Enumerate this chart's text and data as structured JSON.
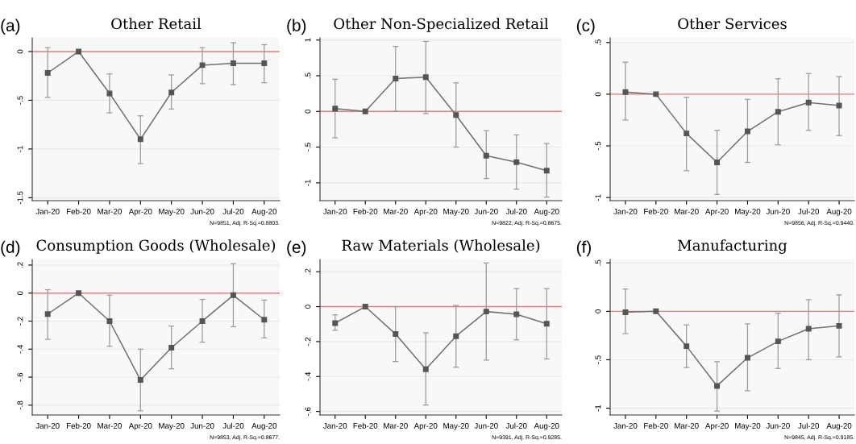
{
  "chart_data": [
    {
      "type": "line",
      "title": "Other Retail",
      "annotations": [
        "(a)",
        "N=9851, Adj. R-Sq.=0.8803."
      ],
      "categories": [
        "Jan-20",
        "Feb-20",
        "Mar-20",
        "Apr-20",
        "May-20",
        "Jun-20",
        "Jul-20",
        "Aug-20"
      ],
      "series": [
        {
          "color": "#555555",
          "values": [
            -0.22,
            0,
            -0.43,
            -0.9,
            -0.42,
            -0.14,
            -0.12,
            -0.12
          ],
          "errors": [
            [
              -0.47,
              0.04
            ],
            null,
            [
              -0.63,
              -0.23
            ],
            [
              -1.15,
              -0.66
            ],
            [
              -0.59,
              -0.24
            ],
            [
              -0.33,
              0.04
            ],
            [
              -0.34,
              0.09
            ],
            [
              -0.32,
              0.07
            ]
          ]
        }
      ],
      "ylim": [
        -1.53,
        0.14
      ],
      "yticks": [
        {
          "value": -1.5,
          "label": "-1.5"
        },
        {
          "value": -1,
          "label": "-1"
        },
        {
          "value": -0.5,
          "label": "-.5"
        },
        0
      ],
      "ref_lines": [
        {
          "axis": "y",
          "value": 0,
          "color": "#e08080"
        }
      ],
      "grid": "y",
      "marker": "square",
      "line_style": "solid"
    },
    {
      "type": "line",
      "title": "Other Non-Specialized Retail",
      "annotations": [
        "(b)",
        "N=9822, Adj. R-Sq.=0.8675."
      ],
      "categories": [
        "Jan-20",
        "Feb-20",
        "Mar-20",
        "Apr-20",
        "May-20",
        "Jun-20",
        "Jul-20",
        "Aug-20"
      ],
      "series": [
        {
          "color": "#555555",
          "values": [
            0.04,
            0,
            0.46,
            0.48,
            -0.05,
            -0.62,
            -0.71,
            -0.83
          ],
          "errors": [
            [
              -0.37,
              0.45
            ],
            null,
            [
              0,
              0.91
            ],
            [
              -0.03,
              0.98
            ],
            [
              -0.5,
              0.4
            ],
            [
              -0.94,
              -0.27
            ],
            [
              -1.09,
              -0.33
            ],
            [
              -1.2,
              -0.45
            ]
          ]
        }
      ],
      "ylim": [
        -1.25,
        1.03
      ],
      "yticks": [
        {
          "value": -1,
          "label": "-1"
        },
        {
          "value": -0.5,
          "label": "-.5"
        },
        0,
        {
          "value": 0.5,
          "label": ".5"
        },
        1
      ],
      "ref_lines": [
        {
          "axis": "y",
          "value": 0,
          "color": "#e08080"
        }
      ],
      "grid": "y",
      "marker": "square",
      "line_style": "solid"
    },
    {
      "type": "line",
      "title": "Other Services",
      "annotations": [
        "(c)",
        "N=9856, Adj. R-Sq.=0.9440."
      ],
      "categories": [
        "Jan-20",
        "Feb-20",
        "Mar-20",
        "Apr-20",
        "May-20",
        "Jun-20",
        "Jul-20",
        "Aug-20"
      ],
      "series": [
        {
          "color": "#555555",
          "values": [
            0.02,
            0,
            -0.38,
            -0.66,
            -0.36,
            -0.17,
            -0.08,
            -0.11
          ],
          "errors": [
            [
              -0.25,
              0.31
            ],
            null,
            [
              -0.74,
              -0.03
            ],
            [
              -0.97,
              -0.35
            ],
            [
              -0.66,
              -0.05
            ],
            [
              -0.49,
              0.15
            ],
            [
              -0.35,
              0.2
            ],
            [
              -0.4,
              0.17
            ]
          ]
        }
      ],
      "ylim": [
        -1.03,
        0.545
      ],
      "yticks": [
        {
          "value": -1,
          "label": "-1"
        },
        {
          "value": -0.5,
          "label": "-.5"
        },
        0,
        {
          "value": 0.5,
          "label": ".5"
        }
      ],
      "ref_lines": [
        {
          "axis": "y",
          "value": 0,
          "color": "#e08080"
        }
      ],
      "grid": "y",
      "marker": "square",
      "line_style": "solid"
    },
    {
      "type": "line",
      "title": "Consumption Goods (Wholesale)",
      "annotations": [
        "(d)",
        "N=9853, Adj. R-Sq.=0.8677."
      ],
      "categories": [
        "Jan-20",
        "Feb-20",
        "Mar-20",
        "Apr-20",
        "May-20",
        "Jun-20",
        "Jul-20",
        "Aug-20"
      ],
      "series": [
        {
          "color": "#555555",
          "values": [
            -0.15,
            0,
            -0.2,
            -0.62,
            -0.39,
            -0.2,
            -0.015,
            -0.19
          ],
          "errors": [
            [
              -0.33,
              0.024
            ],
            null,
            [
              -0.38,
              -0.015
            ],
            [
              -0.84,
              -0.4
            ],
            [
              -0.54,
              -0.235
            ],
            [
              -0.35,
              -0.045
            ],
            [
              -0.24,
              0.21
            ],
            [
              -0.32,
              -0.05
            ]
          ]
        }
      ],
      "ylim": [
        -0.87,
        0.24
      ],
      "yticks": [
        {
          "value": -0.8,
          "label": "-.8"
        },
        {
          "value": -0.6,
          "label": "-.6"
        },
        {
          "value": -0.4,
          "label": "-.4"
        },
        {
          "value": -0.2,
          "label": "-.2"
        },
        0,
        {
          "value": 0.2,
          "label": ".2"
        }
      ],
      "ref_lines": [
        {
          "axis": "y",
          "value": 0,
          "color": "#e08080"
        }
      ],
      "grid": "y",
      "marker": "square",
      "line_style": "solid"
    },
    {
      "type": "line",
      "title": "Raw Materials (Wholesale)",
      "annotations": [
        "(e)",
        "N=9391, Adj. R-Sq.=0.9285."
      ],
      "categories": [
        "Jan-20",
        "Feb-20",
        "Mar-20",
        "Apr-20",
        "May-20",
        "Jun-20",
        "Jul-20",
        "Aug-20"
      ],
      "series": [
        {
          "color": "#555555",
          "values": [
            -0.094,
            0,
            -0.157,
            -0.358,
            -0.169,
            -0.028,
            -0.044,
            -0.098
          ],
          "errors": [
            [
              -0.135,
              -0.047
            ],
            null,
            [
              -0.314,
              0
            ],
            [
              -0.563,
              -0.15
            ],
            [
              -0.347,
              0.007
            ],
            [
              -0.306,
              0.25
            ],
            [
              -0.19,
              0.103
            ],
            [
              -0.299,
              0.103
            ]
          ]
        }
      ],
      "ylim": [
        -0.62,
        0.27
      ],
      "yticks": [
        {
          "value": -0.6,
          "label": "-.6"
        },
        {
          "value": -0.4,
          "label": "-.4"
        },
        {
          "value": -0.2,
          "label": "-.2"
        },
        0,
        {
          "value": 0.2,
          "label": ".2"
        }
      ],
      "ref_lines": [
        {
          "axis": "y",
          "value": 0,
          "color": "#e08080"
        }
      ],
      "grid": "y",
      "marker": "square",
      "line_style": "solid"
    },
    {
      "type": "line",
      "title": "Manufacturing",
      "annotations": [
        "(f)",
        "N=9845, Adj. R-Sq.=0.9185."
      ],
      "categories": [
        "Jan-20",
        "Feb-20",
        "Mar-20",
        "Apr-20",
        "May-20",
        "Jun-20",
        "Jul-20",
        "Aug-20"
      ],
      "series": [
        {
          "color": "#555555",
          "values": [
            -0.01,
            0,
            -0.36,
            -0.77,
            -0.48,
            -0.31,
            -0.18,
            -0.15
          ],
          "errors": [
            [
              -0.23,
              0.23
            ],
            null,
            [
              -0.58,
              -0.14
            ],
            [
              -1.03,
              -0.52
            ],
            [
              -0.82,
              -0.13
            ],
            [
              -0.59,
              -0.02
            ],
            [
              -0.5,
              0.12
            ],
            [
              -0.47,
              0.17
            ]
          ]
        }
      ],
      "ylim": [
        -1.07,
        0.535
      ],
      "yticks": [
        {
          "value": -1,
          "label": "-1"
        },
        {
          "value": -0.5,
          "label": "-.5"
        },
        0,
        {
          "value": 0.5,
          "label": ".5"
        }
      ],
      "ref_lines": [
        {
          "axis": "y",
          "value": 0,
          "color": "#e08080"
        }
      ],
      "grid": "y",
      "marker": "square",
      "line_style": "solid"
    }
  ]
}
